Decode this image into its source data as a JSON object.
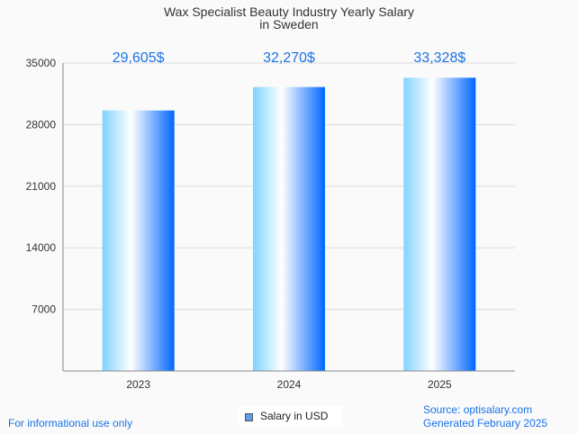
{
  "chart_data": {
    "type": "bar",
    "title_line1": "Wax Specialist Beauty Industry Yearly Salary",
    "title_line2": "in Sweden",
    "categories": [
      "2023",
      "2024",
      "2025"
    ],
    "values": [
      29605,
      32270,
      33328
    ],
    "data_labels": [
      "29,605$",
      "32,270$",
      "33,328$"
    ],
    "yticks": [
      7000,
      14000,
      21000,
      28000,
      35000
    ],
    "ylim": [
      0,
      35000
    ],
    "legend": "Salary in USD",
    "legend_placement": "bottom-center",
    "grid": true
  },
  "footer": {
    "left": "For informational use only",
    "source": "Source: optisalary.com",
    "generated": "Generated February 2025"
  },
  "colors": {
    "accent": "#1a73e8",
    "bar_dark": "#0066ff",
    "bar_light": "#7fd4ff"
  }
}
